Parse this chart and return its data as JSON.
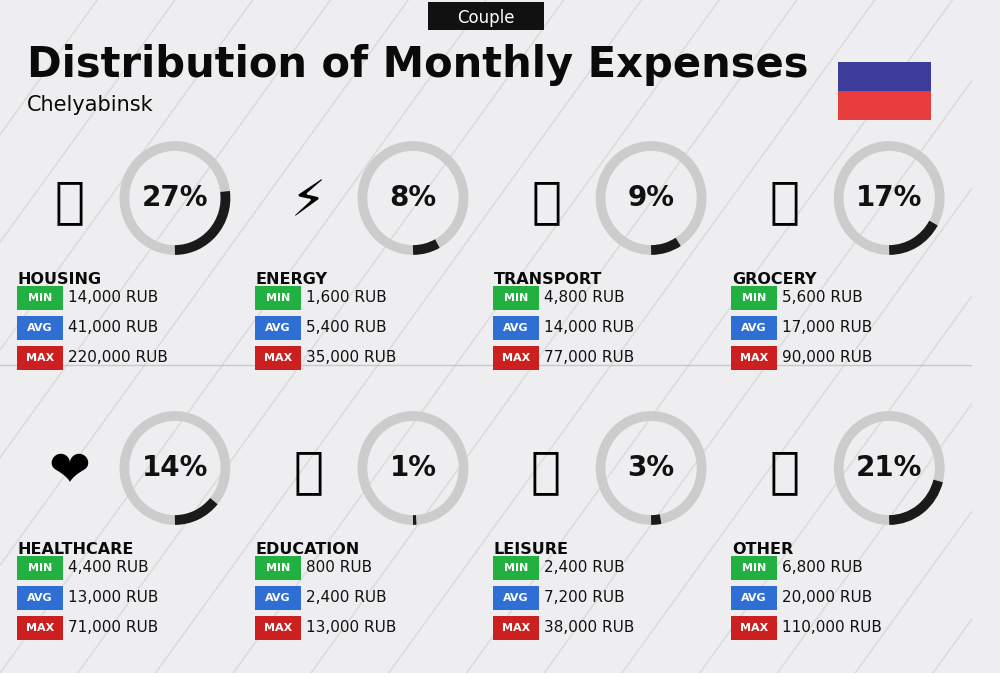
{
  "title": "Distribution of Monthly Expenses",
  "subtitle": "Chelyabinsk",
  "tag": "Couple",
  "bg_color": "#eeeef0",
  "categories": [
    {
      "name": "HOUSING",
      "pct": 27,
      "min": "14,000 RUB",
      "avg": "41,000 RUB",
      "max": "220,000 RUB",
      "emoji": "🏢",
      "row": 0,
      "col": 0
    },
    {
      "name": "ENERGY",
      "pct": 8,
      "min": "1,600 RUB",
      "avg": "5,400 RUB",
      "max": "35,000 RUB",
      "emoji": "⚡",
      "row": 0,
      "col": 1
    },
    {
      "name": "TRANSPORT",
      "pct": 9,
      "min": "4,800 RUB",
      "avg": "14,000 RUB",
      "max": "77,000 RUB",
      "emoji": "🚌",
      "row": 0,
      "col": 2
    },
    {
      "name": "GROCERY",
      "pct": 17,
      "min": "5,600 RUB",
      "avg": "17,000 RUB",
      "max": "90,000 RUB",
      "emoji": "🛒",
      "row": 0,
      "col": 3
    },
    {
      "name": "HEALTHCARE",
      "pct": 14,
      "min": "4,400 RUB",
      "avg": "13,000 RUB",
      "max": "71,000 RUB",
      "emoji": "❤️",
      "row": 1,
      "col": 0
    },
    {
      "name": "EDUCATION",
      "pct": 1,
      "min": "800 RUB",
      "avg": "2,400 RUB",
      "max": "13,000 RUB",
      "emoji": "🎓",
      "row": 1,
      "col": 1
    },
    {
      "name": "LEISURE",
      "pct": 3,
      "min": "2,400 RUB",
      "avg": "7,200 RUB",
      "max": "38,000 RUB",
      "emoji": "🛍️",
      "row": 1,
      "col": 2
    },
    {
      "name": "OTHER",
      "pct": 21,
      "min": "6,800 RUB",
      "avg": "20,000 RUB",
      "max": "110,000 RUB",
      "emoji": "👜",
      "row": 1,
      "col": 3
    }
  ],
  "color_min": "#22b140",
  "color_avg": "#2f6fd4",
  "color_max": "#cc1f1f",
  "flag_top": "#3d3b9b",
  "flag_bot": "#e83d3d",
  "title_fontsize": 30,
  "subtitle_fontsize": 15,
  "tag_fontsize": 12,
  "cat_fontsize": 11.5,
  "val_fontsize": 11,
  "pct_fontsize": 20,
  "badge_fontsize": 8,
  "icon_fontsize": 36
}
